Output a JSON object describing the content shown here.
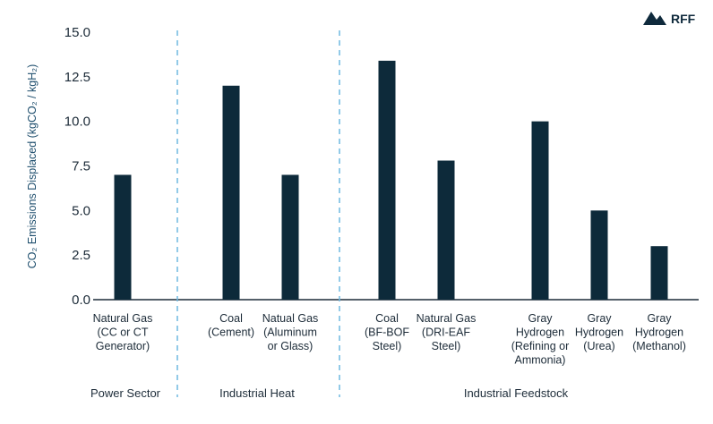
{
  "logo": {
    "text": "RFF"
  },
  "colors": {
    "bar": "#0d2a3a",
    "axis": "#1c2b38",
    "divider": "#6fb8e0",
    "ylabel": "#1f4f6e"
  },
  "chart_data": {
    "type": "bar",
    "ylabel": "CO₂ Emissions Displaced (kgCO₂ / kgH₂)",
    "ylim": [
      0,
      15
    ],
    "yticks": [
      "0.0",
      "2.5",
      "5.0",
      "7.5",
      "10.0",
      "12.5",
      "15.0"
    ],
    "grid": false,
    "categories": [
      [
        "Natural Gas",
        "(CC or CT",
        "Generator)"
      ],
      [
        "Coal",
        "(Cement)"
      ],
      [
        "Natual Gas",
        "(Aluminum",
        "or Glass)"
      ],
      [
        "Coal",
        "(BF-BOF",
        "Steel)"
      ],
      [
        "Natural Gas",
        "(DRI-EAF",
        "Steel)"
      ],
      [
        "Gray",
        "Hydrogen",
        "(Refining or",
        "Ammonia)"
      ],
      [
        "Gray",
        "Hydrogen",
        "(Urea)"
      ],
      [
        "Gray",
        "Hydrogen",
        "(Methanol)"
      ]
    ],
    "values": [
      7.0,
      12.0,
      7.0,
      13.4,
      7.8,
      10.0,
      5.0,
      3.0
    ],
    "groups": [
      "Power Sector",
      "Industrial Heat",
      "Industrial Feedstock"
    ]
  }
}
